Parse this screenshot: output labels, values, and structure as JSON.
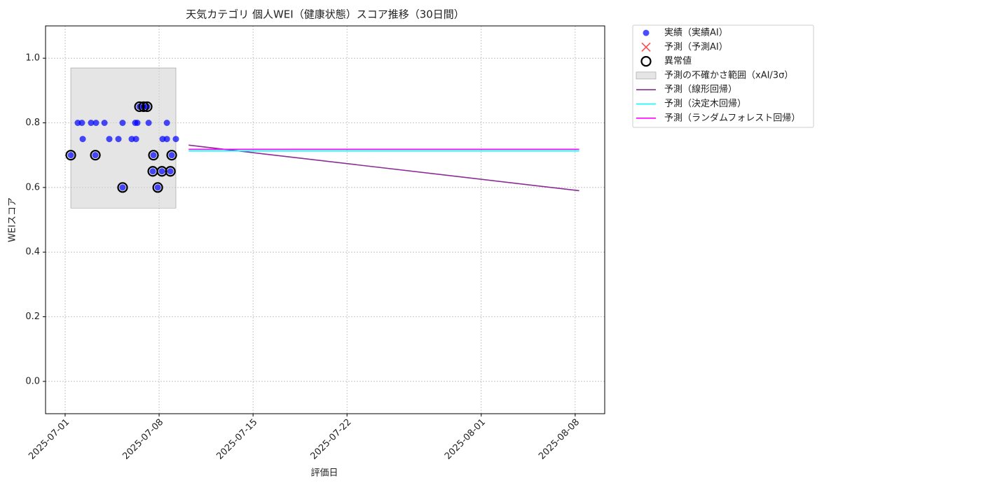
{
  "chart_data": {
    "type": "scatter",
    "title": "天気カテゴリ 個人WEI（健康状態）スコア推移（30日間）",
    "x_label": "評価日",
    "y_label": "WEIスコア",
    "xlim": [
      -1.46,
      40.2
    ],
    "ylim": [
      -0.1,
      1.1
    ],
    "xticks": [
      {
        "value": 0,
        "label": "2025-07-01"
      },
      {
        "value": 7,
        "label": "2025-07-08"
      },
      {
        "value": 14,
        "label": "2025-07-15"
      },
      {
        "value": 21,
        "label": "2025-07-22"
      },
      {
        "value": 31,
        "label": "2025-08-01"
      },
      {
        "value": 38,
        "label": "2025-08-08"
      }
    ],
    "yticks": [
      {
        "value": 0,
        "label": "0.0"
      },
      {
        "value": 0.2,
        "label": "0.2"
      },
      {
        "value": 0.4,
        "label": "0.4"
      },
      {
        "value": 0.6,
        "label": "0.6"
      },
      {
        "value": 0.8,
        "label": "0.8"
      },
      {
        "value": 1,
        "label": "1.0"
      }
    ],
    "grid": true,
    "legend": "outside-upper-right",
    "series": [
      {
        "name": "実績（実績AI）",
        "kind": "dot",
        "color": "#0000ff",
        "x": [
          0.42,
          0.94,
          1.25,
          1.31,
          1.93,
          2.25,
          2.3,
          2.93,
          3.29,
          3.97,
          4.28,
          4.28,
          4.96,
          5.22,
          5.28,
          5.38,
          5.54,
          5.85,
          6.11,
          6.22,
          6.53,
          6.58,
          6.9,
          7.21,
          7.26,
          7.58,
          7.58,
          7.84,
          7.94,
          8.25
        ],
        "values": [
          0.7,
          0.8,
          0.8,
          0.75,
          0.8,
          0.7,
          0.8,
          0.8,
          0.75,
          0.75,
          0.8,
          0.6,
          0.75,
          0.8,
          0.75,
          0.8,
          0.85,
          0.85,
          0.85,
          0.8,
          0.65,
          0.7,
          0.6,
          0.65,
          0.75,
          0.75,
          0.8,
          0.65,
          0.7,
          0.75
        ]
      },
      {
        "name": "予測（予測AI）",
        "kind": "cross",
        "color": "#ff0000",
        "x": [],
        "values": []
      },
      {
        "name": "異常値",
        "kind": "ring",
        "color": "#000000",
        "x": [
          0.42,
          2.25,
          4.28,
          5.54,
          5.85,
          6.11,
          6.53,
          6.58,
          6.9,
          7.21,
          7.84,
          7.94
        ],
        "values": [
          0.7,
          0.7,
          0.6,
          0.85,
          0.85,
          0.85,
          0.65,
          0.7,
          0.6,
          0.65,
          0.65,
          0.7
        ]
      },
      {
        "name": "予測の不確かさ範囲（xAI/3σ）",
        "kind": "band",
        "color": "#d3d3d3",
        "x": [
          0.42,
          8.25
        ],
        "lower": [
          0.536,
          0.536
        ],
        "upper": [
          0.97,
          0.97
        ]
      },
      {
        "name": "予測（線形回帰）",
        "kind": "line",
        "color": "#8b2c95",
        "x": [
          9.2,
          38.3
        ],
        "values": [
          0.731,
          0.59
        ]
      },
      {
        "name": "予測（決定木回帰）",
        "kind": "line",
        "color": "#00ffff",
        "x": [
          9.2,
          38.3
        ],
        "values": [
          0.713,
          0.713
        ]
      },
      {
        "name": "予測（ランダムフォレスト回帰）",
        "kind": "line",
        "color": "#ff00ff",
        "x": [
          9.2,
          38.3
        ],
        "values": [
          0.718,
          0.718
        ]
      }
    ]
  }
}
